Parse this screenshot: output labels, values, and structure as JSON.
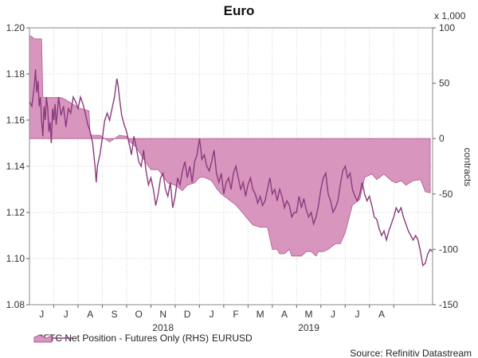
{
  "title": "Euro",
  "legend": {
    "area_label": "CFTC Net Position - Futures Only (RHS)",
    "line_label": "EURUSD"
  },
  "source": "Source: Refinitiv Datastream",
  "right_axis_unit": "x 1,000",
  "right_axis_label": "contracts",
  "colors": {
    "area_fill": "#d896bf",
    "area_edge": "#b0578e",
    "line": "#8b3a7d",
    "grid": "#d0d0d0"
  },
  "chart_data": {
    "type": "area",
    "title": "Euro",
    "x_tick_labels": [
      "J",
      "J",
      "A",
      "S",
      "O",
      "N",
      "D",
      "J",
      "F",
      "M",
      "A",
      "M",
      "J",
      "J",
      "A"
    ],
    "year_labels": [
      {
        "label": "2018",
        "at_month": 5.5
      },
      {
        "label": "2019",
        "at_month": 11.5
      }
    ],
    "x_range": [
      0,
      16.6
    ],
    "left_axis": {
      "ticks": [
        "1.20",
        "1.18",
        "1.16",
        "1.14",
        "1.12",
        "1.10",
        "1.08"
      ],
      "ylim": [
        1.08,
        1.2
      ]
    },
    "right_axis": {
      "ticks": [
        "100",
        "50",
        "0",
        "-50",
        "-100",
        "-150"
      ],
      "ylim": [
        -150,
        100
      ],
      "label": "contracts",
      "unit": "x 1,000"
    },
    "grid": true,
    "series": [
      {
        "name": "CFTC Net Position - Futures Only (RHS)",
        "axis": "right",
        "kind": "area",
        "points": [
          [
            0,
            93
          ],
          [
            0.1,
            92
          ],
          [
            0.2,
            90
          ],
          [
            0.5,
            90
          ],
          [
            0.55,
            37
          ],
          [
            1.0,
            37
          ],
          [
            1.3,
            37
          ],
          [
            1.5,
            35
          ],
          [
            2.0,
            28
          ],
          [
            2.45,
            25
          ],
          [
            2.5,
            3
          ],
          [
            2.9,
            3
          ],
          [
            3.3,
            -3
          ],
          [
            3.7,
            3
          ],
          [
            4.0,
            2
          ],
          [
            4.1,
            -2
          ],
          [
            4.4,
            -8
          ],
          [
            4.8,
            -22
          ],
          [
            5.0,
            -28
          ],
          [
            5.3,
            -28
          ],
          [
            5.7,
            -40
          ],
          [
            6.0,
            -42
          ],
          [
            6.3,
            -47
          ],
          [
            6.5,
            -42
          ],
          [
            6.8,
            -40
          ],
          [
            7.0,
            -35
          ],
          [
            7.2,
            -35
          ],
          [
            7.5,
            -38
          ],
          [
            7.7,
            -45
          ],
          [
            7.9,
            -50
          ],
          [
            8.2,
            -55
          ],
          [
            8.5,
            -60
          ],
          [
            8.7,
            -65
          ],
          [
            9.0,
            -73
          ],
          [
            9.2,
            -78
          ],
          [
            9.5,
            -80
          ],
          [
            9.8,
            -80
          ],
          [
            10.0,
            -100
          ],
          [
            10.2,
            -100
          ],
          [
            10.3,
            -104
          ],
          [
            10.5,
            -104
          ],
          [
            10.7,
            -100
          ],
          [
            10.8,
            -106
          ],
          [
            11.2,
            -106
          ],
          [
            11.4,
            -102
          ],
          [
            11.6,
            -102
          ],
          [
            11.8,
            -106
          ],
          [
            11.9,
            -102
          ],
          [
            12.1,
            -102
          ],
          [
            12.3,
            -100
          ],
          [
            12.6,
            -95
          ],
          [
            12.8,
            -95
          ],
          [
            13.0,
            -85
          ],
          [
            13.3,
            -60
          ],
          [
            13.6,
            -55
          ],
          [
            13.8,
            -35
          ],
          [
            14.1,
            -32
          ],
          [
            14.3,
            -37
          ],
          [
            14.6,
            -32
          ],
          [
            14.9,
            -38
          ],
          [
            15.1,
            -40
          ],
          [
            15.3,
            -38
          ],
          [
            15.5,
            -42
          ],
          [
            15.8,
            -38
          ],
          [
            16.1,
            -37
          ],
          [
            16.3,
            -48
          ],
          [
            16.5,
            -49
          ]
        ]
      },
      {
        "name": "EURUSD",
        "axis": "left",
        "kind": "line",
        "points": [
          [
            0,
            1.168
          ],
          [
            0.1,
            1.166
          ],
          [
            0.2,
            1.175
          ],
          [
            0.25,
            1.182
          ],
          [
            0.3,
            1.172
          ],
          [
            0.35,
            1.177
          ],
          [
            0.4,
            1.166
          ],
          [
            0.45,
            1.17
          ],
          [
            0.5,
            1.16
          ],
          [
            0.55,
            1.153
          ],
          [
            0.6,
            1.166
          ],
          [
            0.65,
            1.16
          ],
          [
            0.7,
            1.17
          ],
          [
            0.75,
            1.165
          ],
          [
            0.8,
            1.155
          ],
          [
            0.85,
            1.159
          ],
          [
            0.9,
            1.15
          ],
          [
            0.95,
            1.165
          ],
          [
            1.0,
            1.16
          ],
          [
            1.05,
            1.167
          ],
          [
            1.1,
            1.158
          ],
          [
            1.15,
            1.164
          ],
          [
            1.2,
            1.17
          ],
          [
            1.3,
            1.162
          ],
          [
            1.4,
            1.166
          ],
          [
            1.5,
            1.157
          ],
          [
            1.6,
            1.165
          ],
          [
            1.7,
            1.163
          ],
          [
            1.8,
            1.17
          ],
          [
            1.9,
            1.168
          ],
          [
            2.0,
            1.165
          ],
          [
            2.1,
            1.17
          ],
          [
            2.2,
            1.167
          ],
          [
            2.3,
            1.163
          ],
          [
            2.4,
            1.158
          ],
          [
            2.5,
            1.155
          ],
          [
            2.6,
            1.15
          ],
          [
            2.7,
            1.14
          ],
          [
            2.75,
            1.133
          ],
          [
            2.8,
            1.14
          ],
          [
            2.9,
            1.145
          ],
          [
            3.0,
            1.152
          ],
          [
            3.1,
            1.16
          ],
          [
            3.2,
            1.163
          ],
          [
            3.3,
            1.16
          ],
          [
            3.4,
            1.165
          ],
          [
            3.5,
            1.17
          ],
          [
            3.55,
            1.174
          ],
          [
            3.6,
            1.178
          ],
          [
            3.65,
            1.175
          ],
          [
            3.7,
            1.17
          ],
          [
            3.8,
            1.162
          ],
          [
            3.9,
            1.158
          ],
          [
            4.0,
            1.155
          ],
          [
            4.1,
            1.15
          ],
          [
            4.2,
            1.145
          ],
          [
            4.3,
            1.153
          ],
          [
            4.4,
            1.148
          ],
          [
            4.5,
            1.142
          ],
          [
            4.6,
            1.14
          ],
          [
            4.7,
            1.147
          ],
          [
            4.8,
            1.138
          ],
          [
            4.9,
            1.132
          ],
          [
            5.0,
            1.135
          ],
          [
            5.1,
            1.13
          ],
          [
            5.2,
            1.123
          ],
          [
            5.3,
            1.128
          ],
          [
            5.4,
            1.135
          ],
          [
            5.5,
            1.137
          ],
          [
            5.6,
            1.13
          ],
          [
            5.7,
            1.127
          ],
          [
            5.8,
            1.133
          ],
          [
            5.9,
            1.122
          ],
          [
            6.0,
            1.127
          ],
          [
            6.1,
            1.135
          ],
          [
            6.2,
            1.132
          ],
          [
            6.3,
            1.138
          ],
          [
            6.4,
            1.142
          ],
          [
            6.5,
            1.135
          ],
          [
            6.6,
            1.14
          ],
          [
            6.7,
            1.133
          ],
          [
            6.8,
            1.142
          ],
          [
            6.9,
            1.145
          ],
          [
            7.0,
            1.152
          ],
          [
            7.05,
            1.148
          ],
          [
            7.1,
            1.143
          ],
          [
            7.2,
            1.145
          ],
          [
            7.3,
            1.14
          ],
          [
            7.4,
            1.138
          ],
          [
            7.5,
            1.142
          ],
          [
            7.6,
            1.147
          ],
          [
            7.7,
            1.137
          ],
          [
            7.8,
            1.133
          ],
          [
            7.9,
            1.137
          ],
          [
            8.0,
            1.128
          ],
          [
            8.1,
            1.133
          ],
          [
            8.2,
            1.135
          ],
          [
            8.3,
            1.13
          ],
          [
            8.4,
            1.137
          ],
          [
            8.5,
            1.14
          ],
          [
            8.6,
            1.135
          ],
          [
            8.7,
            1.13
          ],
          [
            8.8,
            1.133
          ],
          [
            8.9,
            1.127
          ],
          [
            9.0,
            1.132
          ],
          [
            9.1,
            1.135
          ],
          [
            9.2,
            1.13
          ],
          [
            9.3,
            1.128
          ],
          [
            9.4,
            1.124
          ],
          [
            9.5,
            1.127
          ],
          [
            9.6,
            1.123
          ],
          [
            9.7,
            1.125
          ],
          [
            9.8,
            1.13
          ],
          [
            9.9,
            1.135
          ],
          [
            10.0,
            1.128
          ],
          [
            10.1,
            1.13
          ],
          [
            10.2,
            1.125
          ],
          [
            10.3,
            1.13
          ],
          [
            10.4,
            1.127
          ],
          [
            10.5,
            1.122
          ],
          [
            10.6,
            1.125
          ],
          [
            10.7,
            1.123
          ],
          [
            10.8,
            1.118
          ],
          [
            10.9,
            1.12
          ],
          [
            11.0,
            1.12
          ],
          [
            11.1,
            1.127
          ],
          [
            11.2,
            1.122
          ],
          [
            11.3,
            1.126
          ],
          [
            11.4,
            1.121
          ],
          [
            11.5,
            1.118
          ],
          [
            11.6,
            1.12
          ],
          [
            11.7,
            1.115
          ],
          [
            11.8,
            1.118
          ],
          [
            11.9,
            1.123
          ],
          [
            12.0,
            1.13
          ],
          [
            12.1,
            1.135
          ],
          [
            12.2,
            1.137
          ],
          [
            12.3,
            1.128
          ],
          [
            12.4,
            1.125
          ],
          [
            12.5,
            1.12
          ],
          [
            12.6,
            1.122
          ],
          [
            12.7,
            1.125
          ],
          [
            12.8,
            1.132
          ],
          [
            12.9,
            1.138
          ],
          [
            13.0,
            1.14
          ],
          [
            13.1,
            1.135
          ],
          [
            13.2,
            1.137
          ],
          [
            13.3,
            1.13
          ],
          [
            13.4,
            1.127
          ],
          [
            13.5,
            1.125
          ],
          [
            13.6,
            1.128
          ],
          [
            13.7,
            1.133
          ],
          [
            13.8,
            1.128
          ],
          [
            13.9,
            1.125
          ],
          [
            14.0,
            1.127
          ],
          [
            14.1,
            1.123
          ],
          [
            14.2,
            1.118
          ],
          [
            14.3,
            1.117
          ],
          [
            14.4,
            1.113
          ],
          [
            14.5,
            1.11
          ],
          [
            14.6,
            1.112
          ],
          [
            14.7,
            1.108
          ],
          [
            14.8,
            1.112
          ],
          [
            14.9,
            1.115
          ],
          [
            15.0,
            1.118
          ],
          [
            15.1,
            1.122
          ],
          [
            15.2,
            1.12
          ],
          [
            15.3,
            1.122
          ],
          [
            15.4,
            1.118
          ],
          [
            15.5,
            1.115
          ],
          [
            15.6,
            1.112
          ],
          [
            15.7,
            1.11
          ],
          [
            15.8,
            1.108
          ],
          [
            15.9,
            1.11
          ],
          [
            16.0,
            1.108
          ],
          [
            16.1,
            1.103
          ],
          [
            16.2,
            1.097
          ],
          [
            16.3,
            1.098
          ],
          [
            16.4,
            1.102
          ],
          [
            16.5,
            1.104
          ],
          [
            16.6,
            1.103
          ]
        ]
      }
    ]
  }
}
